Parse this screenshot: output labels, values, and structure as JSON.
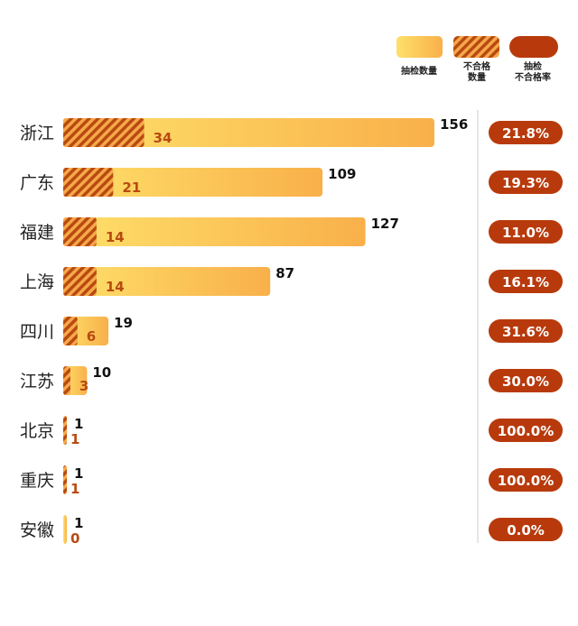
{
  "chart_data": {
    "type": "bar",
    "orientation": "horizontal",
    "categories": [
      "浙江",
      "广东",
      "福建",
      "上海",
      "四川",
      "江苏",
      "北京",
      "重庆",
      "安徽"
    ],
    "series": [
      {
        "name": "抽检数量",
        "values": [
          156,
          109,
          127,
          87,
          19,
          10,
          1,
          1,
          1
        ],
        "color": "#fdd160"
      },
      {
        "name": "不合格数量",
        "values": [
          34,
          21,
          14,
          14,
          6,
          3,
          1,
          1,
          0
        ],
        "color": "#b84a10",
        "pattern": "hatched"
      },
      {
        "name": "抽检不合格率",
        "values": [
          "21.8%",
          "19.3%",
          "11.0%",
          "16.1%",
          "31.6%",
          "30.0%",
          "100.0%",
          "100.0%",
          "0.0%"
        ],
        "color": "#b83a0c"
      }
    ],
    "legend": {
      "placement": "top-right",
      "items": [
        "抽检数量",
        "不合格数量",
        "抽检不合格率"
      ]
    },
    "grid": false
  },
  "colors": {
    "bar_start": "#fee06a",
    "bar_end": "#f9b04a",
    "hatch": "#b84a10",
    "rate_pill": "#b83a0c",
    "count_label": "#b84a10"
  }
}
